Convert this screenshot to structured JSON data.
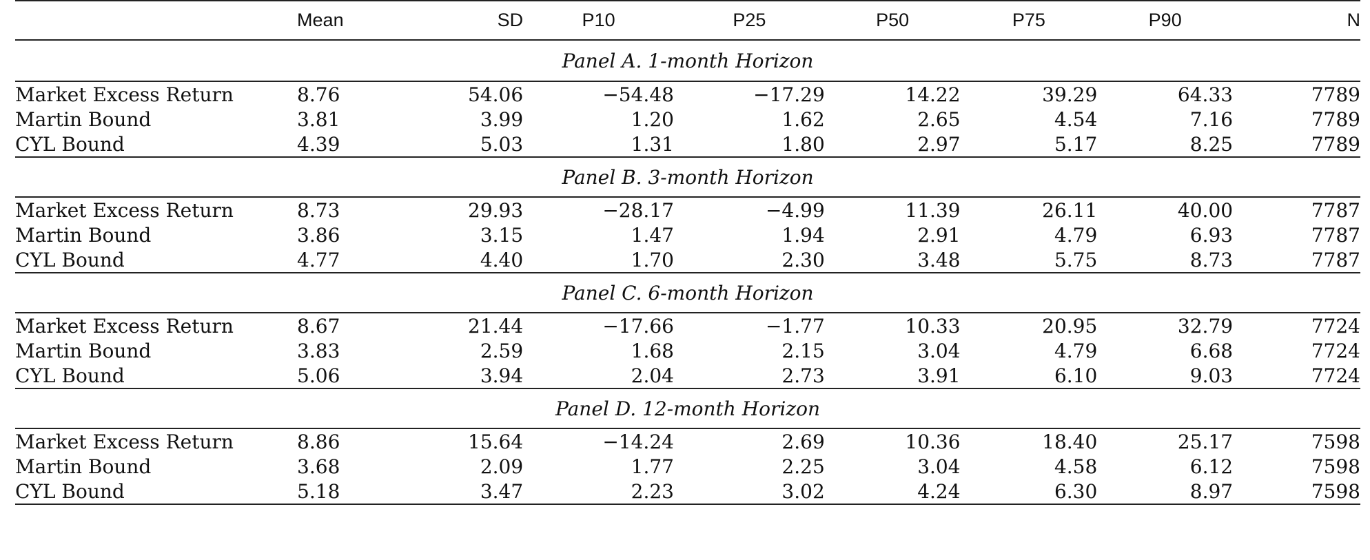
{
  "table": {
    "headers": [
      "",
      "Mean",
      "SD",
      "P10",
      "P25",
      "P50",
      "P75",
      "P90",
      "N"
    ],
    "panels": [
      {
        "title": "Panel A. 1-month Horizon",
        "rows": [
          {
            "label": "Market Excess Return",
            "values": [
              "8.76",
              "54.06",
              "−54.48",
              "−17.29",
              "14.22",
              "39.29",
              "64.33",
              "7789"
            ]
          },
          {
            "label": "Martin Bound",
            "values": [
              "3.81",
              "3.99",
              "1.20",
              "1.62",
              "2.65",
              "4.54",
              "7.16",
              "7789"
            ]
          },
          {
            "label": "CYL Bound",
            "values": [
              "4.39",
              "5.03",
              "1.31",
              "1.80",
              "2.97",
              "5.17",
              "8.25",
              "7789"
            ]
          }
        ]
      },
      {
        "title": "Panel B. 3-month Horizon",
        "rows": [
          {
            "label": "Market Excess Return",
            "values": [
              "8.73",
              "29.93",
              "−28.17",
              "−4.99",
              "11.39",
              "26.11",
              "40.00",
              "7787"
            ]
          },
          {
            "label": "Martin Bound",
            "values": [
              "3.86",
              "3.15",
              "1.47",
              "1.94",
              "2.91",
              "4.79",
              "6.93",
              "7787"
            ]
          },
          {
            "label": "CYL Bound",
            "values": [
              "4.77",
              "4.40",
              "1.70",
              "2.30",
              "3.48",
              "5.75",
              "8.73",
              "7787"
            ]
          }
        ]
      },
      {
        "title": "Panel C. 6-month Horizon",
        "rows": [
          {
            "label": "Market Excess Return",
            "values": [
              "8.67",
              "21.44",
              "−17.66",
              "−1.77",
              "10.33",
              "20.95",
              "32.79",
              "7724"
            ]
          },
          {
            "label": "Martin Bound",
            "values": [
              "3.83",
              "2.59",
              "1.68",
              "2.15",
              "3.04",
              "4.79",
              "6.68",
              "7724"
            ]
          },
          {
            "label": "CYL Bound",
            "values": [
              "5.06",
              "3.94",
              "2.04",
              "2.73",
              "3.91",
              "6.10",
              "9.03",
              "7724"
            ]
          }
        ]
      },
      {
        "title": "Panel D. 12-month Horizon",
        "rows": [
          {
            "label": "Market Excess Return",
            "values": [
              "8.86",
              "15.64",
              "−14.24",
              "2.69",
              "10.36",
              "18.40",
              "25.17",
              "7598"
            ]
          },
          {
            "label": "Martin Bound",
            "values": [
              "3.68",
              "2.09",
              "1.77",
              "2.25",
              "3.04",
              "4.58",
              "6.12",
              "7598"
            ]
          },
          {
            "label": "CYL Bound",
            "values": [
              "5.18",
              "3.47",
              "2.23",
              "3.02",
              "4.24",
              "6.30",
              "8.97",
              "7598"
            ]
          }
        ]
      }
    ]
  }
}
